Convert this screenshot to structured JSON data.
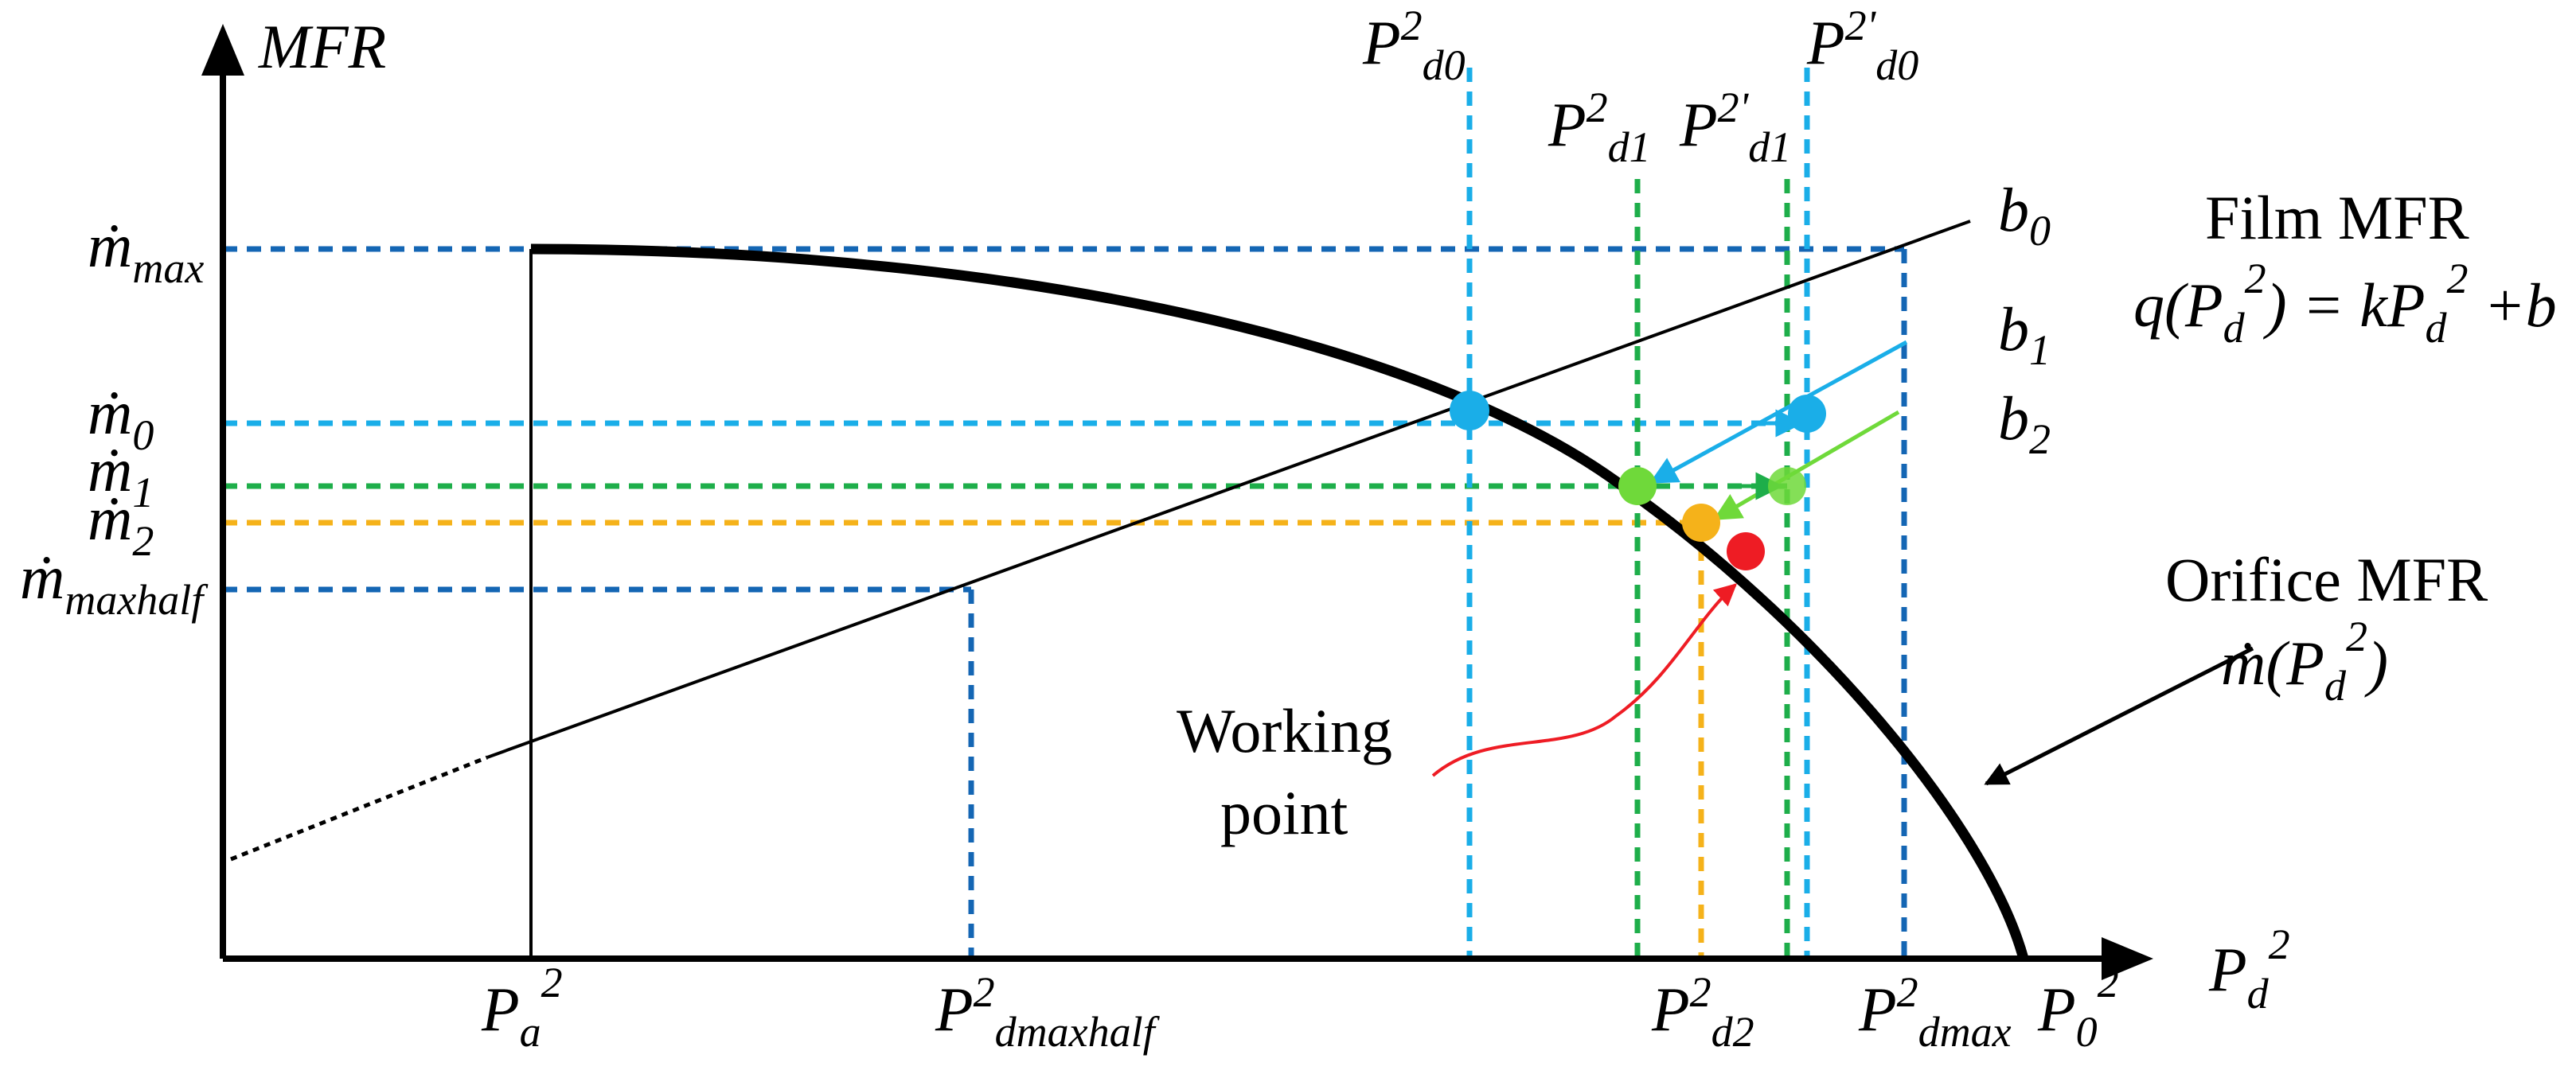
{
  "axes": {
    "y_title": "MFR",
    "x_title_base": "P",
    "x_title_sub": "d",
    "x_title_sup": "2"
  },
  "y_labels": {
    "m_max": {
      "base": "ṁ",
      "sub": "max"
    },
    "m0": {
      "base": "ṁ",
      "sub": "0"
    },
    "m1": {
      "base": "ṁ",
      "sub": "1"
    },
    "m2": {
      "base": "ṁ",
      "sub": "2"
    },
    "m_maxhalf": {
      "base": "ṁ",
      "sub": "maxhalf"
    }
  },
  "x_labels": {
    "pa": {
      "base": "P",
      "sub": "a",
      "sup": "2"
    },
    "pd_maxhalf": {
      "base": "P",
      "sup": "2",
      "sub": "dmaxhalf"
    },
    "pd2": {
      "base": "P",
      "sup": "2",
      "sub": "d2"
    },
    "pd_max": {
      "base": "P",
      "sup": "2",
      "sub": "dmax"
    },
    "p0": {
      "base": "P",
      "sub": "0",
      "sup": "2"
    }
  },
  "top_labels": {
    "pd0": {
      "base": "P",
      "sup": "2",
      "sub": "d0"
    },
    "pd1": {
      "base": "P",
      "sup": "2",
      "sub": "d1"
    },
    "pd1p": {
      "base": "P",
      "sup": "2'",
      "sub": "d1"
    },
    "pd0p": {
      "base": "P",
      "sup": "2'",
      "sub": "d0"
    }
  },
  "line_labels": {
    "b0": {
      "base": "b",
      "sub": "0"
    },
    "b1": {
      "base": "b",
      "sub": "1"
    },
    "b2": {
      "base": "b",
      "sub": "2"
    }
  },
  "film": {
    "title": "Film MFR",
    "eq_q": "q(P",
    "eq_d": "d",
    "eq_2": "2",
    "eq_mid": ") = kP",
    "eq_d2": "d",
    "eq_22": "2",
    "eq_end": " +b"
  },
  "orifice": {
    "title": "Orifice MFR",
    "eq_m": "ṁ(P",
    "eq_d": "d",
    "eq_2": "2",
    "eq_end": ")"
  },
  "working_point": {
    "line1": "Working",
    "line2": "point"
  },
  "colors": {
    "light_blue": "#1aaee8",
    "dark_blue": "#1466b4",
    "green": "#1eae4a",
    "light_green": "#6fd93a",
    "orange": "#f5b21a",
    "red": "#ee1c24",
    "black": "#000000"
  }
}
